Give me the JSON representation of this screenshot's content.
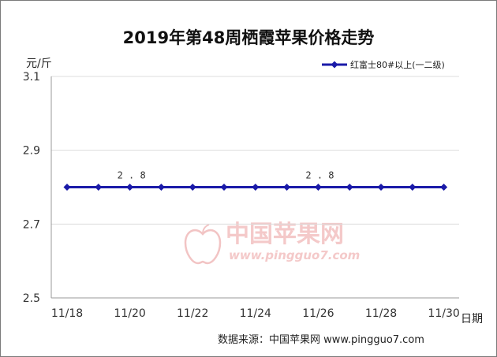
{
  "title": "2019年第48周栖霞苹果价格走势",
  "y_unit": "元/斤",
  "x_unit": "日期",
  "source": "数据来源：中国苹果网 www.pingguo7.com",
  "watermark": {
    "name": "中国苹果网",
    "url": "www.pingguo7.com"
  },
  "colors": {
    "series": "#1a1aa8",
    "grid": "#dcdcdc",
    "axis": "#999999"
  },
  "chart_data": {
    "type": "line",
    "title": "2019年第48周栖霞苹果价格走势",
    "ylabel": "元/斤",
    "xlabel": "日期",
    "ylim": [
      2.5,
      3.1
    ],
    "yticks": [
      "2.5",
      "2.7",
      "2.9",
      "3.1"
    ],
    "x_tick_labels": [
      "11/18",
      "11/20",
      "11/22",
      "11/24",
      "11/26",
      "11/28",
      "11/30"
    ],
    "x": [
      "11/18",
      "11/19",
      "11/20",
      "11/21",
      "11/22",
      "11/23",
      "11/24",
      "11/25",
      "11/26",
      "11/27",
      "11/28",
      "11/29",
      "11/30"
    ],
    "grid": "horizontal",
    "legend_position": "top-right",
    "series": [
      {
        "name": "红富士80#以上(一二级)",
        "values": [
          2.8,
          2.8,
          2.8,
          2.8,
          2.8,
          2.8,
          2.8,
          2.8,
          2.8,
          2.8,
          2.8,
          2.8,
          2.8
        ],
        "marker": "diamond"
      }
    ],
    "data_labels": [
      {
        "x": "11/20",
        "text": "2.8"
      },
      {
        "x": "11/26",
        "text": "2.8"
      }
    ]
  }
}
